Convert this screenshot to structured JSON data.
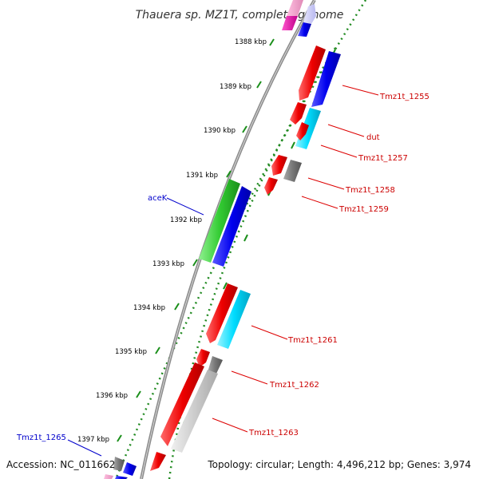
{
  "title": "Thauera sp. MZ1T, complete genome",
  "footer": {
    "accession": "Accession: NC_011662",
    "topology": "Topology: circular; Length: 4,496,212 bp; Genes: 3,974"
  },
  "ticks": [
    {
      "label": "1388 kbp"
    },
    {
      "label": "1389 kbp"
    },
    {
      "label": "1390 kbp"
    },
    {
      "label": "1391 kbp"
    },
    {
      "label": "1392 kbp"
    },
    {
      "label": "1393 kbp"
    },
    {
      "label": "1394 kbp"
    },
    {
      "label": "1395 kbp"
    },
    {
      "label": "1396 kbp"
    },
    {
      "label": "1397 kbp"
    }
  ],
  "gene_labels": [
    {
      "text": "Tmz1t_1255",
      "color": "#cc0000"
    },
    {
      "text": "dut",
      "color": "#cc0000"
    },
    {
      "text": "Tmz1t_1257",
      "color": "#cc0000"
    },
    {
      "text": "Tmz1t_1258",
      "color": "#cc0000"
    },
    {
      "text": "Tmz1t_1259",
      "color": "#cc0000"
    },
    {
      "text": "aceK",
      "color": "#0000cc"
    },
    {
      "text": "Tmz1t_1261",
      "color": "#cc0000"
    },
    {
      "text": "Tmz1t_1262",
      "color": "#cc0000"
    },
    {
      "text": "Tmz1t_1263",
      "color": "#cc0000"
    },
    {
      "text": "Tmz1t_1265",
      "color": "#0000cc"
    }
  ],
  "colors": {
    "cds": "#ee0000",
    "gene": "#0000ee",
    "rna": "#00c8ee",
    "trna": "#22bb22",
    "pseudo": "#777777",
    "tick_dots": "#228b22",
    "backbone": "#888888"
  }
}
